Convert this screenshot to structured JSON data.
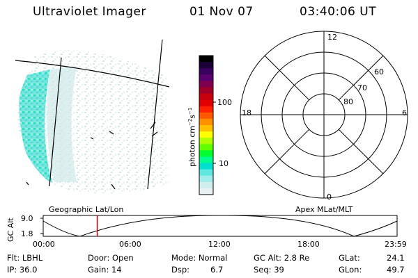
{
  "header": {
    "instrument": "Ultraviolet Imager",
    "date": "01 Nov 07",
    "time": "03:40:06 UT"
  },
  "colorbar": {
    "unit_label": "photon cm",
    "unit_sup1": "−2",
    "unit_mid": "s",
    "unit_sup2": "−1",
    "ticks": [
      "100",
      "10"
    ],
    "colors": [
      "#000000",
      "#1a0035",
      "#3a0060",
      "#5a0070",
      "#800050",
      "#a00028",
      "#c80010",
      "#e00000",
      "#ff2000",
      "#ff5a00",
      "#ff9000",
      "#ffc000",
      "#ffff00",
      "#b0ff00",
      "#60ff00",
      "#00ff30",
      "#00ff90",
      "#00e0d0",
      "#60e8e0",
      "#a0ecec",
      "#d0eeee",
      "#e8f0f0"
    ]
  },
  "polar_plot": {
    "mlt_labels": [
      "12",
      "18",
      "6",
      "0"
    ],
    "lat_labels": [
      "60",
      "70",
      "80"
    ]
  },
  "timeline": {
    "left_label": "Geographic Lat/Lon",
    "right_label": "Apex MLat/MLT",
    "ylabel": "GC Alt",
    "y_ticks": [
      "9.0",
      "1.8"
    ],
    "x_ticks": [
      "00:00",
      "06:00",
      "12:00",
      "18:00",
      "23:59"
    ],
    "marker_color": "#cc0000"
  },
  "status": {
    "row1": {
      "flt": "Flt: LBHL",
      "door": "Door: Open",
      "mode": "Mode: Normal",
      "gcalt": "GC Alt: 2.8 Re",
      "glat_label": "GLat:",
      "glat_value": "24.1"
    },
    "row2": {
      "ip": "IP: 36.0",
      "gain": "Gain: 14",
      "dsp_label": "Dsp:",
      "dsp_value": "6.7",
      "seq": "Seq: 39",
      "glon_label": "GLon:",
      "glon_value": "49.7"
    }
  }
}
